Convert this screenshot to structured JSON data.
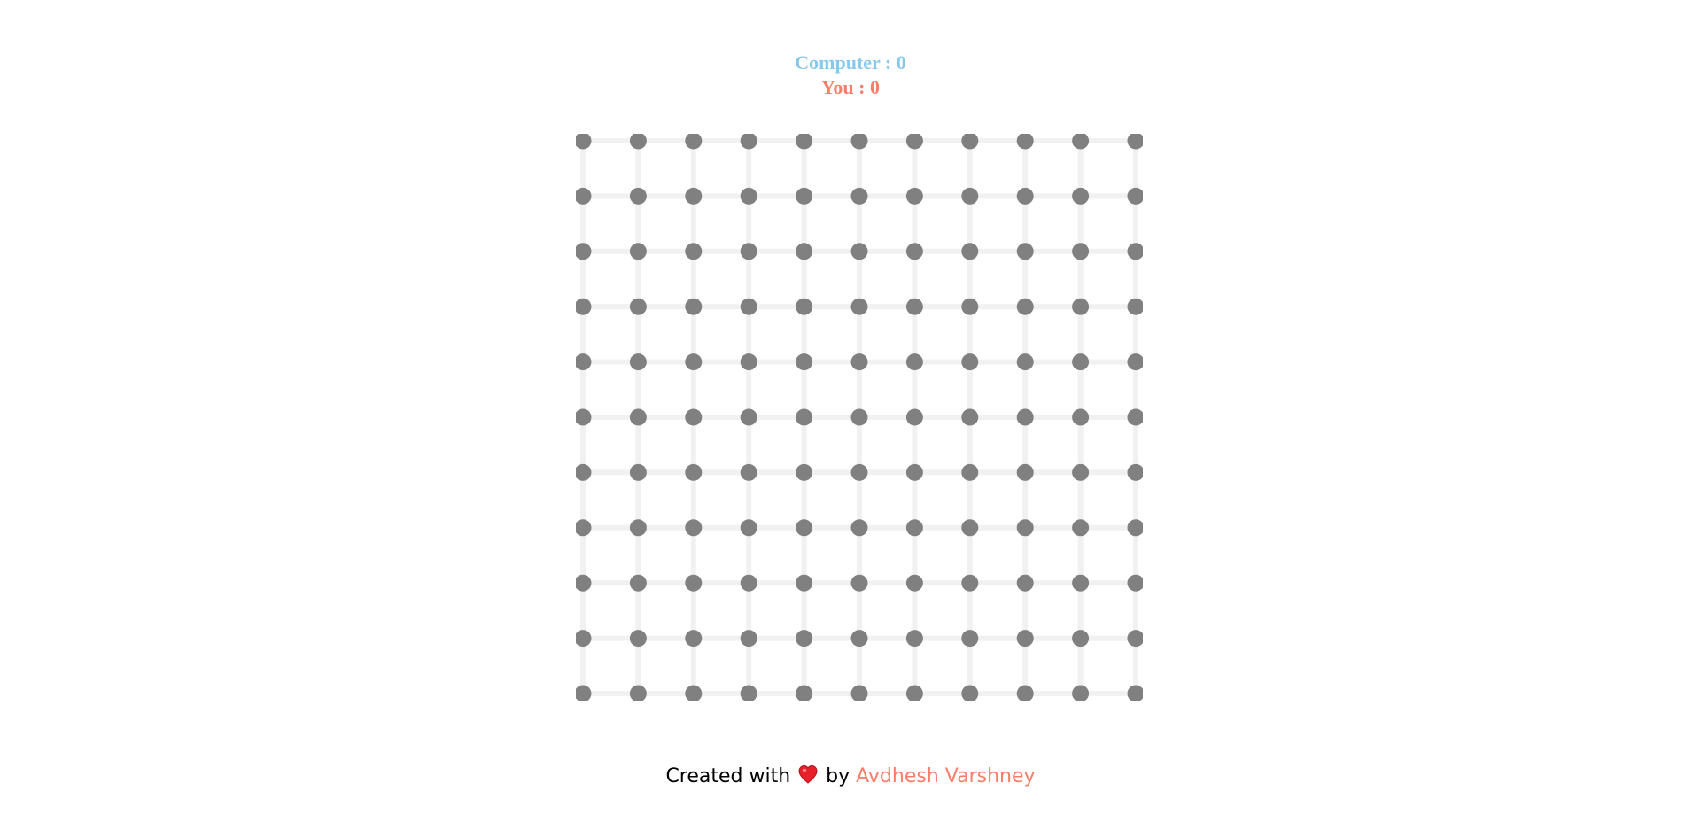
{
  "scoreboard": {
    "computer_label": "Computer : 0",
    "you_label": "You : 0"
  },
  "board": {
    "rows": 11,
    "cols": 11
  },
  "footer": {
    "created_with": "Created with",
    "heart_icon": "heart-icon",
    "by": "by",
    "author": "Avdhesh Varshney"
  },
  "colors": {
    "computer": "#86c9ec",
    "you": "#f77e6a",
    "dot": "#808080",
    "edge": "#f1f1f1",
    "heart": "#e8202a",
    "author": "#f77e6a"
  }
}
